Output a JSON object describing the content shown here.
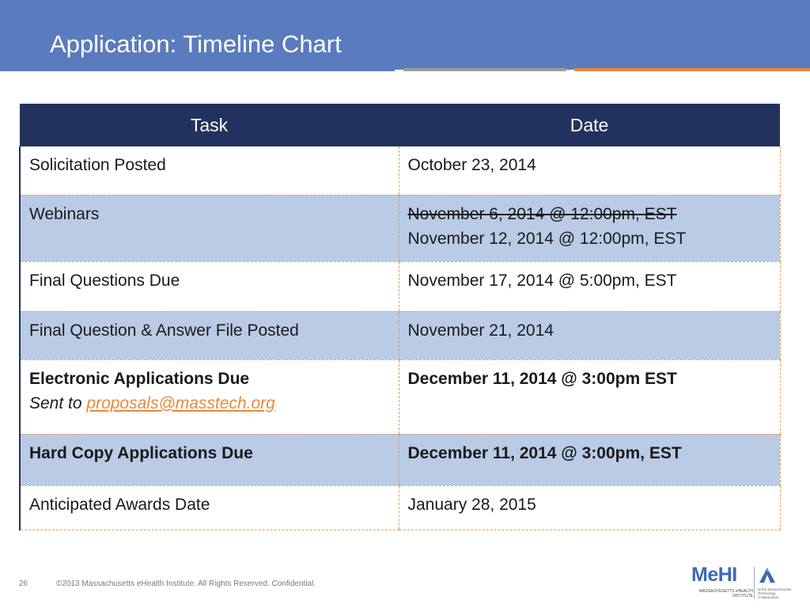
{
  "slide": {
    "title": "Application: Timeline Chart",
    "page_number": "26",
    "copyright": "©2013 Massachusetts eHealth Institute. All Rights Reserved. Confidential."
  },
  "colors": {
    "title_bar": "#5a7bbd",
    "header_bg": "#22325f",
    "row_shade": "#b9cbe5",
    "accent_orange": "#e8893b",
    "accent_gray": "#9a9a9a"
  },
  "table": {
    "headers": {
      "task": "Task",
      "date": "Date"
    },
    "rows": [
      {
        "task": "Solicitation Posted",
        "date": "October 23, 2014"
      },
      {
        "task": "Webinars",
        "date_struck": "November 6, 2014 @ 12:00pm, EST",
        "date": "November 12, 2014 @ 12:00pm, EST"
      },
      {
        "task": "Final Questions Due",
        "date": "November 17, 2014 @ 5:00pm, EST"
      },
      {
        "task": "Final Question & Answer File Posted",
        "date": "November 21, 2014"
      },
      {
        "task": "Electronic Applications  Due",
        "task_note_prefix": "Sent to ",
        "task_note_email": "proposals@masstech.org",
        "date": "December 11, 2014 @ 3:00pm EST"
      },
      {
        "task": "Hard Copy Applications Due",
        "date": "December 11, 2014 @ 3:00pm, EST"
      },
      {
        "task": "Anticipated Awards Date",
        "date": "January 28, 2015"
      }
    ]
  },
  "logo": {
    "mark": "MeHI",
    "subtitle": "MASSACHUSETTS eHEALTH INSTITUTE",
    "parent": "at the Massachusetts Technology Collaborative",
    "icon": "mountain-peak-icon"
  }
}
